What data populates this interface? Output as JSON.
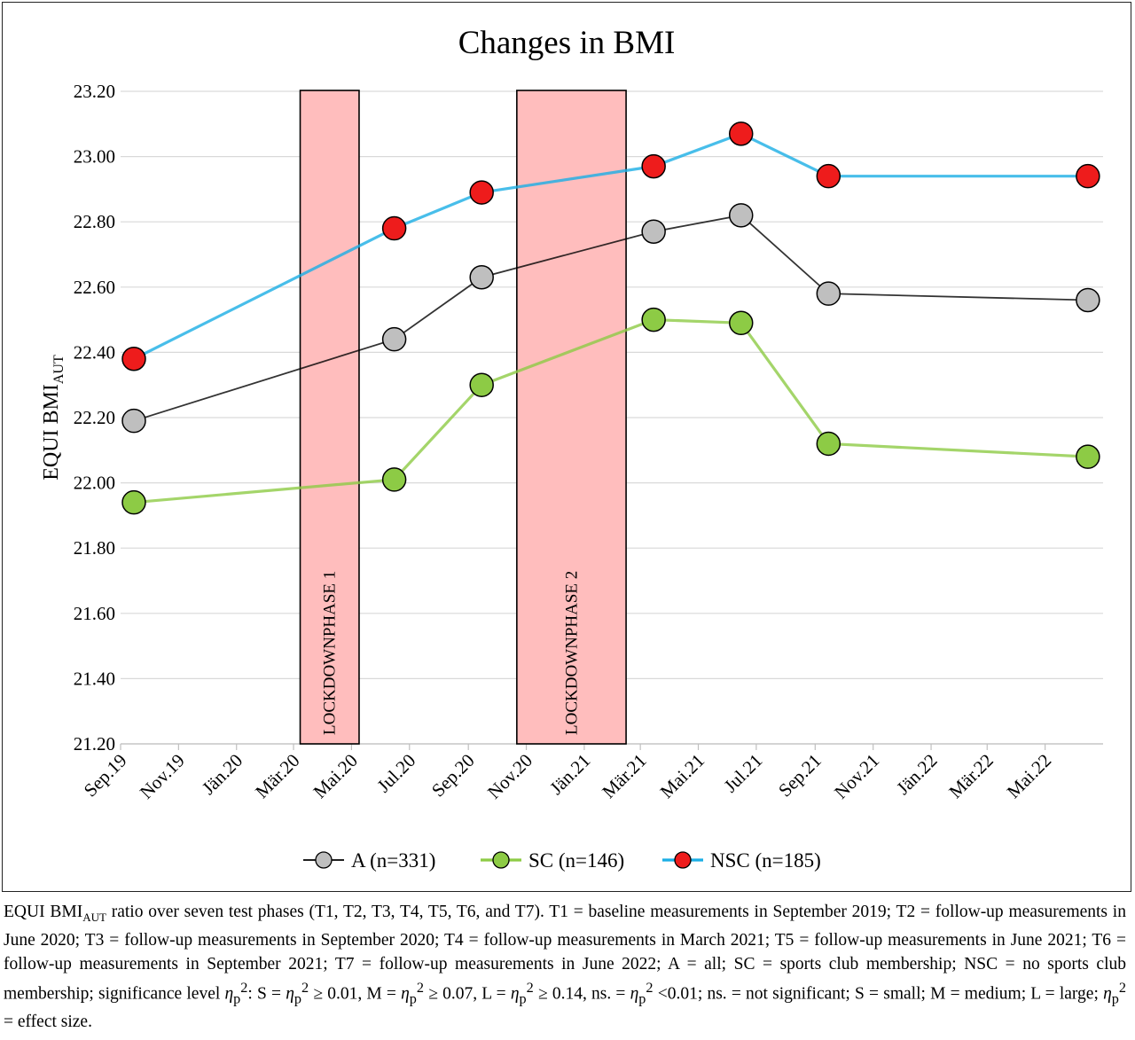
{
  "chart_data": {
    "type": "line",
    "title": "Changes in BMI",
    "ylabel_main": "EQUI BMI",
    "ylabel_sub": "AUT",
    "ylim": [
      21.2,
      23.2
    ],
    "yticks": [
      "21.20",
      "21.40",
      "21.60",
      "21.80",
      "22.00",
      "22.20",
      "22.40",
      "22.60",
      "22.80",
      "23.00",
      "23.20"
    ],
    "xaxis_start": "2019-09-01",
    "xaxis_end": "2022-07-01",
    "xticks": [
      {
        "label": "Sep.19",
        "date": "2019-09-01"
      },
      {
        "label": "Nov.19",
        "date": "2019-11-01"
      },
      {
        "label": "Jän.20",
        "date": "2020-01-01"
      },
      {
        "label": "Mär.20",
        "date": "2020-03-01"
      },
      {
        "label": "Mai.20",
        "date": "2020-05-01"
      },
      {
        "label": "Jul.20",
        "date": "2020-07-01"
      },
      {
        "label": "Sep.20",
        "date": "2020-09-01"
      },
      {
        "label": "Nov.20",
        "date": "2020-11-01"
      },
      {
        "label": "Jän.21",
        "date": "2021-01-01"
      },
      {
        "label": "Mär.21",
        "date": "2021-03-01"
      },
      {
        "label": "Mai.21",
        "date": "2021-05-01"
      },
      {
        "label": "Jul.21",
        "date": "2021-07-01"
      },
      {
        "label": "Sep.21",
        "date": "2021-09-01"
      },
      {
        "label": "Nov.21",
        "date": "2021-11-01"
      },
      {
        "label": "Jän.22",
        "date": "2022-01-01"
      },
      {
        "label": "Mär.22",
        "date": "2022-03-01"
      },
      {
        "label": "Mai.22",
        "date": "2022-05-01"
      }
    ],
    "x": [
      "2019-09-15",
      "2020-06-15",
      "2020-09-15",
      "2021-03-15",
      "2021-06-15",
      "2021-09-15",
      "2022-06-15"
    ],
    "series": [
      {
        "name": "NSC (n=185)",
        "line_color": "#1AAEE5",
        "marker_color": "#EE1C1C",
        "values": [
          22.38,
          22.78,
          22.89,
          22.97,
          23.07,
          22.94,
          22.94
        ]
      },
      {
        "name": "A (n=331)",
        "line_color": "#000000",
        "marker_color": "#BFBFBF",
        "values": [
          22.19,
          22.44,
          22.63,
          22.77,
          22.82,
          22.58,
          22.56
        ]
      },
      {
        "name": "SC (n=146)",
        "line_color": "#8DCB45",
        "marker_color": "#8DCB45",
        "values": [
          21.94,
          22.01,
          22.3,
          22.5,
          22.49,
          22.12,
          22.08
        ]
      }
    ],
    "legend_order": [
      1,
      2,
      0
    ],
    "legend_position": "bottom",
    "grid": "horizontal",
    "annotations": [
      {
        "label": "LOCKDOWNPHASE 1",
        "start": "2020-03-08",
        "end": "2020-05-09",
        "fill": "#FFBDBD",
        "border": "#000000"
      },
      {
        "label": "LOCKDOWNPHASE 2",
        "start": "2020-10-22",
        "end": "2021-02-14",
        "fill": "#FFBDBD",
        "border": "#000000"
      }
    ]
  },
  "caption": {
    "s1": "EQUI BMI",
    "s2": "AUT",
    "s3": " ratio over seven test phases (T1, T2, T3, T4, T5, T6, and T7). T1 = baseline measurements in September 2019; T2 = follow-up measurements in June 2020; T3 = follow-up measurements in September 2020; T4 = follow-up measurements in March 2021; T5 = follow-up measurements in June 2021; T6 = follow-up measurements in September 2021; T7 = follow-up measurements in June 2022; A = all; SC = sports club membership; NSC = no sports club membership; significance level ",
    "eta": "η",
    "p": "p",
    "two": "2",
    "s4": ": S = ",
    "s5": " ≥ 0.01, M = ",
    "s6": " ≥ 0.07, L = ",
    "s7": " ≥ 0.14, ns. = ",
    "s8": " <0.01; ns. = not significant; S = small; M = medium; L = large; ",
    "s9": " = effect size."
  }
}
